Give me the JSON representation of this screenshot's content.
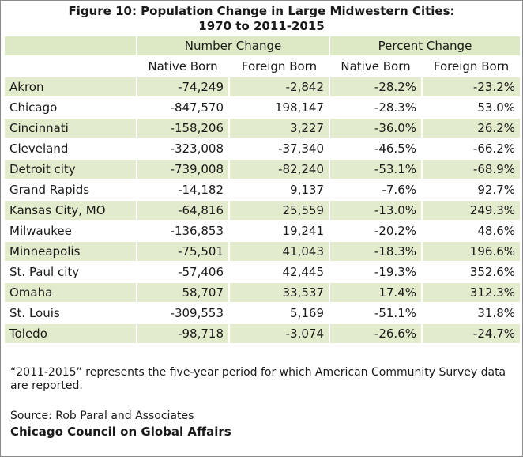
{
  "title_line1": "Figure 10: Population Change in Large Midwestern Cities:",
  "title_line2": "1970 to 2011-2015",
  "group_headers": [
    "Number Change",
    "Percent Change"
  ],
  "sub_headers": [
    "Native Born",
    "Foreign Born",
    "Native Born",
    "Foreign Born"
  ],
  "note": "“2011-2015” represents the five-year period for which American Community Survey data are reported.",
  "source": "Source: Rob Paral and Associates",
  "org": "Chicago Council on Global Affairs",
  "colors": {
    "band": "#e2ebcc",
    "header": "#dde8c4"
  },
  "chart_data": {
    "type": "table",
    "title": "Figure 10: Population Change in Large Midwestern Cities: 1970 to 2011-2015",
    "columns": [
      "Number Change Native Born",
      "Number Change Foreign Born",
      "Percent Change Native Born",
      "Percent Change Foreign Born"
    ],
    "rows": [
      [
        "Akron",
        "-74,249",
        "-2,842",
        "-28.2%",
        "-23.2%"
      ],
      [
        "Chicago",
        "-847,570",
        "198,147",
        "-28.3%",
        "53.0%"
      ],
      [
        "Cincinnati",
        "-158,206",
        "3,227",
        "-36.0%",
        "26.2%"
      ],
      [
        "Cleveland",
        "-323,008",
        "-37,340",
        "-46.5%",
        "-66.2%"
      ],
      [
        "Detroit city",
        "-739,008",
        "-82,240",
        "-53.1%",
        "-68.9%"
      ],
      [
        "Grand Rapids",
        "-14,182",
        "9,137",
        "-7.6%",
        "92.7%"
      ],
      [
        "Kansas City, MO",
        "-64,816",
        "25,559",
        "-13.0%",
        "249.3%"
      ],
      [
        "Milwaukee",
        "-136,853",
        "19,241",
        "-20.2%",
        "48.6%"
      ],
      [
        "Minneapolis",
        "-75,501",
        "41,043",
        "-18.3%",
        "196.6%"
      ],
      [
        "St. Paul city",
        "-57,406",
        "42,445",
        "-19.3%",
        "352.6%"
      ],
      [
        "Omaha",
        "58,707",
        "33,537",
        "17.4%",
        "312.3%"
      ],
      [
        "St. Louis",
        "-309,553",
        "5,169",
        "-51.1%",
        "31.8%"
      ],
      [
        "Toledo",
        "-98,718",
        "-3,074",
        "-26.6%",
        "-24.7%"
      ]
    ]
  }
}
